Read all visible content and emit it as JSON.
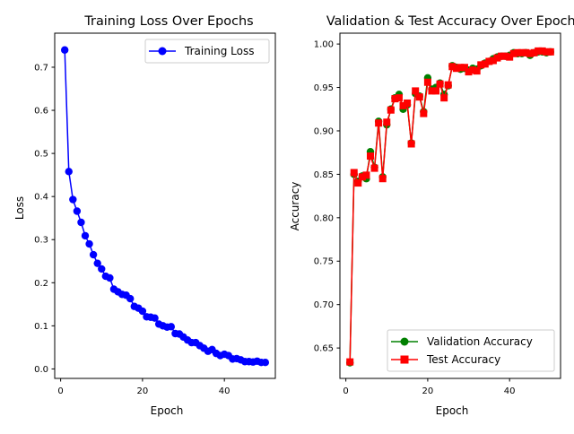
{
  "chart_data": [
    {
      "type": "line",
      "title": "Training Loss Over Epochs",
      "xlabel": "Epoch",
      "ylabel": "Loss",
      "xlim": [
        -1.45,
        52.45
      ],
      "ylim": [
        -0.022,
        0.779
      ],
      "xticks": [
        0,
        20,
        40
      ],
      "yticks": [
        0.0,
        0.1,
        0.2,
        0.3,
        0.4,
        0.5,
        0.6,
        0.7
      ],
      "ytick_labels": [
        "0.0",
        "0.1",
        "0.2",
        "0.3",
        "0.4",
        "0.5",
        "0.6",
        "0.7"
      ],
      "grid": false,
      "legend": "top-right",
      "series": [
        {
          "name": "Training Loss",
          "color": "#0000ff",
          "marker": "circle",
          "x": [
            1,
            2,
            3,
            4,
            5,
            6,
            7,
            8,
            9,
            10,
            11,
            12,
            13,
            14,
            15,
            16,
            17,
            18,
            19,
            20,
            21,
            22,
            23,
            24,
            25,
            26,
            27,
            28,
            29,
            30,
            31,
            32,
            33,
            34,
            35,
            36,
            37,
            38,
            39,
            40,
            41,
            42,
            43,
            44,
            45,
            46,
            47,
            48,
            49,
            50
          ],
          "values": [
            0.74,
            0.458,
            0.393,
            0.366,
            0.34,
            0.309,
            0.29,
            0.265,
            0.245,
            0.232,
            0.215,
            0.211,
            0.185,
            0.179,
            0.173,
            0.171,
            0.163,
            0.145,
            0.141,
            0.134,
            0.121,
            0.12,
            0.118,
            0.104,
            0.1,
            0.097,
            0.098,
            0.082,
            0.081,
            0.074,
            0.067,
            0.061,
            0.061,
            0.054,
            0.048,
            0.041,
            0.045,
            0.036,
            0.031,
            0.034,
            0.031,
            0.023,
            0.024,
            0.021,
            0.017,
            0.017,
            0.016,
            0.018,
            0.015,
            0.015
          ]
        }
      ]
    },
    {
      "type": "line",
      "title": "Validation & Test Accuracy Over Epochs",
      "xlabel": "Epoch",
      "ylabel": "Accuracy",
      "xlim": [
        -1.45,
        52.45
      ],
      "ylim": [
        0.615,
        1.0125
      ],
      "xticks": [
        0,
        20,
        40
      ],
      "yticks": [
        0.65,
        0.7,
        0.75,
        0.8,
        0.85,
        0.9,
        0.95,
        1.0
      ],
      "ytick_labels": [
        "0.65",
        "0.70",
        "0.75",
        "0.80",
        "0.85",
        "0.90",
        "0.95",
        "1.00"
      ],
      "grid": false,
      "legend": "bottom-right",
      "series": [
        {
          "name": "Validation Accuracy",
          "color": "#008000",
          "marker": "circle",
          "x": [
            1,
            2,
            3,
            4,
            5,
            6,
            7,
            8,
            9,
            10,
            11,
            12,
            13,
            14,
            15,
            16,
            17,
            18,
            19,
            20,
            21,
            22,
            23,
            24,
            25,
            26,
            27,
            28,
            29,
            30,
            31,
            32,
            33,
            34,
            35,
            36,
            37,
            38,
            39,
            40,
            41,
            42,
            43,
            44,
            45,
            46,
            47,
            48,
            49,
            50
          ],
          "values": [
            0.633,
            0.85,
            0.842,
            0.848,
            0.845,
            0.876,
            0.858,
            0.911,
            0.847,
            0.907,
            0.925,
            0.938,
            0.942,
            0.925,
            0.93,
            0.886,
            0.943,
            0.94,
            0.922,
            0.961,
            0.948,
            0.95,
            0.955,
            0.942,
            0.952,
            0.975,
            0.973,
            0.971,
            0.972,
            0.97,
            0.972,
            0.971,
            0.975,
            0.978,
            0.98,
            0.983,
            0.985,
            0.986,
            0.986,
            0.987,
            0.99,
            0.989,
            0.989,
            0.99,
            0.987,
            0.99,
            0.991,
            0.991,
            0.99,
            0.991
          ]
        },
        {
          "name": "Test Accuracy",
          "color": "#ff0000",
          "marker": "square",
          "x": [
            1,
            2,
            3,
            4,
            5,
            6,
            7,
            8,
            9,
            10,
            11,
            12,
            13,
            14,
            15,
            16,
            17,
            18,
            19,
            20,
            21,
            22,
            23,
            24,
            25,
            26,
            27,
            28,
            29,
            30,
            31,
            32,
            33,
            34,
            35,
            36,
            37,
            38,
            39,
            40,
            41,
            42,
            43,
            44,
            45,
            46,
            47,
            48,
            49,
            50
          ],
          "values": [
            0.634,
            0.852,
            0.84,
            0.847,
            0.849,
            0.871,
            0.857,
            0.909,
            0.845,
            0.91,
            0.924,
            0.937,
            0.938,
            0.929,
            0.932,
            0.885,
            0.946,
            0.939,
            0.92,
            0.956,
            0.946,
            0.946,
            0.954,
            0.938,
            0.953,
            0.974,
            0.972,
            0.973,
            0.973,
            0.968,
            0.97,
            0.969,
            0.976,
            0.977,
            0.98,
            0.981,
            0.984,
            0.986,
            0.986,
            0.985,
            0.989,
            0.99,
            0.99,
            0.99,
            0.989,
            0.99,
            0.992,
            0.992,
            0.991,
            0.991
          ]
        }
      ]
    }
  ]
}
